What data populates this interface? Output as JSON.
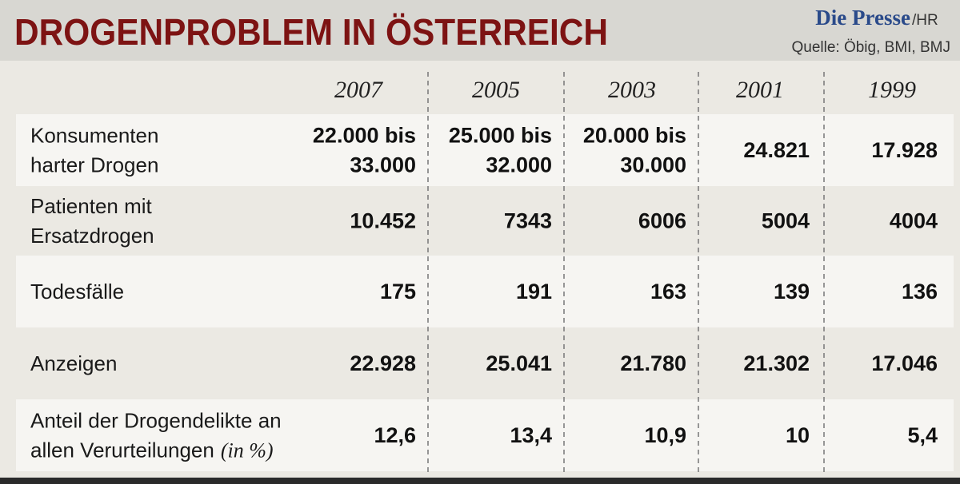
{
  "header": {
    "title": "DROGENPROBLEM IN ÖSTERREICH",
    "brand": "Die Presse",
    "credit": "/HR",
    "source": "Quelle: Öbig, BMI, BMJ"
  },
  "table": {
    "columns": [
      "2007",
      "2005",
      "2003",
      "2001",
      "1999"
    ],
    "rows": [
      {
        "label": [
          "Konsumenten",
          "harter Drogen"
        ],
        "cells": [
          [
            "22.000 bis",
            "33.000"
          ],
          [
            "25.000 bis",
            "32.000"
          ],
          [
            "20.000 bis",
            "30.000"
          ],
          [
            "24.821"
          ],
          [
            "17.928"
          ]
        ]
      },
      {
        "label": [
          "Patienten mit",
          "Ersatzdrogen"
        ],
        "cells": [
          [
            "10.452"
          ],
          [
            "7343"
          ],
          [
            "6006"
          ],
          [
            "5004"
          ],
          [
            "4004"
          ]
        ]
      },
      {
        "label": [
          "Todesfälle"
        ],
        "cells": [
          [
            "175"
          ],
          [
            "191"
          ],
          [
            "163"
          ],
          [
            "139"
          ],
          [
            "136"
          ]
        ]
      },
      {
        "label": [
          "Anzeigen"
        ],
        "cells": [
          [
            "22.928"
          ],
          [
            "25.041"
          ],
          [
            "21.780"
          ],
          [
            "21.302"
          ],
          [
            "17.046"
          ]
        ]
      },
      {
        "label": [
          "Anteil der Drogendelikte an",
          "allen Verurteilungen"
        ],
        "unit": "(in %)",
        "cells": [
          [
            "12,6"
          ],
          [
            "13,4"
          ],
          [
            "10,9"
          ],
          [
            "10"
          ],
          [
            "5,4"
          ]
        ]
      }
    ]
  }
}
